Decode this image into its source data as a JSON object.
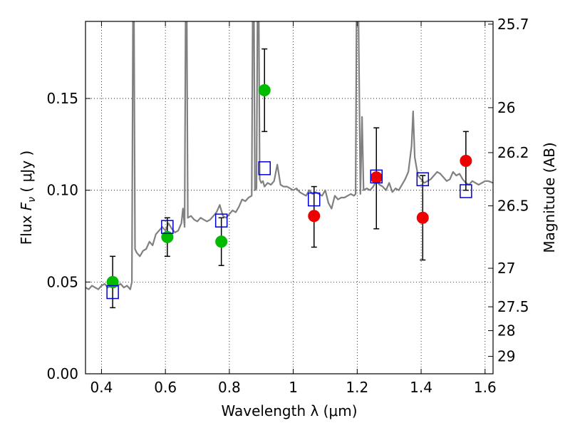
{
  "chart_data": {
    "type": "scatter",
    "xlabel": "Wavelength  λ (μm)",
    "ylabel": "Flux  F_ν  ( μJy )",
    "ylabel_right": "Magnitude (AB)",
    "xlim": [
      0.35,
      1.625
    ],
    "ylim": [
      0.0,
      0.192
    ],
    "grid": true,
    "x_ticks": [
      0.4,
      0.6,
      0.8,
      1.0,
      1.2,
      1.4,
      1.6
    ],
    "x_tick_labels": [
      "0.4",
      "0.6",
      "0.8",
      "1",
      "1.2",
      "1.4",
      "1.6"
    ],
    "y_ticks": [
      0.0,
      0.05,
      0.1,
      0.15
    ],
    "y_tick_labels": [
      "0.00",
      "0.05",
      "0.10",
      "0.15"
    ],
    "right_ticks": [
      {
        "label": "25.7",
        "flux": 0.1905
      },
      {
        "label": "26",
        "flux": 0.145
      },
      {
        "label": "26.2",
        "flux": 0.1205
      },
      {
        "label": "26.5",
        "flux": 0.0915
      },
      {
        "label": "27",
        "flux": 0.0575
      },
      {
        "label": "27.5",
        "flux": 0.0365
      },
      {
        "label": "28",
        "flux": 0.0235
      },
      {
        "label": "29",
        "flux": 0.0095
      }
    ],
    "series": [
      {
        "marker": "circle",
        "color": "#00bb00",
        "points": [
          {
            "x": 0.435,
            "y": 0.05,
            "lo": 0.036,
            "hi": 0.064
          },
          {
            "x": 0.606,
            "y": 0.0745,
            "lo": 0.064,
            "hi": 0.085
          },
          {
            "x": 0.775,
            "y": 0.072,
            "lo": 0.059,
            "hi": 0.085
          },
          {
            "x": 0.91,
            "y": 0.1545,
            "lo": 0.132,
            "hi": 0.177
          }
        ]
      },
      {
        "marker": "circle",
        "color": "#ee0000",
        "points": [
          {
            "x": 1.065,
            "y": 0.086,
            "lo": 0.069,
            "hi": 0.102
          },
          {
            "x": 1.26,
            "y": 0.107,
            "lo": 0.079,
            "hi": 0.134
          },
          {
            "x": 1.405,
            "y": 0.085,
            "lo": 0.062,
            "hi": 0.108
          },
          {
            "x": 1.54,
            "y": 0.116,
            "lo": 0.1,
            "hi": 0.132
          }
        ]
      },
      {
        "marker": "open-square",
        "color": "#0000cc",
        "points": [
          {
            "x": 0.435,
            "y": 0.0445
          },
          {
            "x": 0.606,
            "y": 0.08
          },
          {
            "x": 0.775,
            "y": 0.0835
          },
          {
            "x": 0.91,
            "y": 0.112
          },
          {
            "x": 1.065,
            "y": 0.095
          },
          {
            "x": 1.26,
            "y": 0.1075
          },
          {
            "x": 1.405,
            "y": 0.106
          },
          {
            "x": 1.54,
            "y": 0.0995
          }
        ]
      }
    ],
    "spectrum": {
      "color": "#808080",
      "x": [
        0.35,
        0.36,
        0.37,
        0.38,
        0.39,
        0.4,
        0.41,
        0.42,
        0.43,
        0.44,
        0.45,
        0.46,
        0.47,
        0.48,
        0.49,
        0.495,
        0.5,
        0.505,
        0.51,
        0.52,
        0.53,
        0.54,
        0.55,
        0.56,
        0.57,
        0.58,
        0.59,
        0.6,
        0.61,
        0.62,
        0.63,
        0.64,
        0.65,
        0.655,
        0.66,
        0.665,
        0.67,
        0.68,
        0.69,
        0.7,
        0.71,
        0.72,
        0.73,
        0.74,
        0.75,
        0.76,
        0.77,
        0.78,
        0.79,
        0.8,
        0.81,
        0.82,
        0.83,
        0.84,
        0.85,
        0.86,
        0.87,
        0.875,
        0.88,
        0.885,
        0.89,
        0.895,
        0.9,
        0.905,
        0.91,
        0.92,
        0.93,
        0.94,
        0.95,
        0.96,
        0.97,
        0.98,
        0.99,
        1.0,
        1.01,
        1.02,
        1.03,
        1.04,
        1.05,
        1.06,
        1.07,
        1.08,
        1.09,
        1.1,
        1.11,
        1.12,
        1.13,
        1.14,
        1.15,
        1.16,
        1.17,
        1.18,
        1.19,
        1.195,
        1.2,
        1.21,
        1.215,
        1.22,
        1.23,
        1.24,
        1.25,
        1.26,
        1.27,
        1.28,
        1.29,
        1.3,
        1.31,
        1.32,
        1.33,
        1.34,
        1.35,
        1.36,
        1.37,
        1.375,
        1.38,
        1.39,
        1.4,
        1.41,
        1.42,
        1.43,
        1.44,
        1.45,
        1.46,
        1.47,
        1.48,
        1.49,
        1.5,
        1.51,
        1.52,
        1.53,
        1.54,
        1.55,
        1.56,
        1.57,
        1.58,
        1.59,
        1.6,
        1.61,
        1.625
      ],
      "y": [
        0.047,
        0.046,
        0.048,
        0.047,
        0.046,
        0.048,
        0.049,
        0.047,
        0.048,
        0.047,
        0.048,
        0.049,
        0.047,
        0.048,
        0.046,
        0.05,
        0.26,
        0.068,
        0.066,
        0.064,
        0.067,
        0.068,
        0.072,
        0.07,
        0.076,
        0.078,
        0.08,
        0.078,
        0.082,
        0.079,
        0.077,
        0.078,
        0.082,
        0.09,
        0.08,
        0.26,
        0.085,
        0.086,
        0.084,
        0.083,
        0.085,
        0.084,
        0.083,
        0.084,
        0.086,
        0.088,
        0.092,
        0.086,
        0.085,
        0.087,
        0.089,
        0.088,
        0.091,
        0.095,
        0.094,
        0.096,
        0.097,
        0.26,
        0.1,
        0.101,
        0.26,
        0.106,
        0.104,
        0.105,
        0.102,
        0.104,
        0.103,
        0.105,
        0.114,
        0.103,
        0.102,
        0.102,
        0.101,
        0.1,
        0.101,
        0.099,
        0.098,
        0.097,
        0.1,
        0.098,
        0.099,
        0.098,
        0.097,
        0.1,
        0.093,
        0.09,
        0.097,
        0.095,
        0.096,
        0.096,
        0.097,
        0.098,
        0.097,
        0.098,
        0.26,
        0.098,
        0.14,
        0.1,
        0.101,
        0.1,
        0.102,
        0.105,
        0.103,
        0.102,
        0.1,
        0.104,
        0.099,
        0.101,
        0.1,
        0.103,
        0.106,
        0.11,
        0.124,
        0.143,
        0.118,
        0.108,
        0.106,
        0.104,
        0.105,
        0.106,
        0.108,
        0.11,
        0.109,
        0.107,
        0.105,
        0.106,
        0.11,
        0.108,
        0.109,
        0.106,
        0.104,
        0.103,
        0.105,
        0.104,
        0.103,
        0.104,
        0.105,
        0.105,
        0.104
      ]
    }
  }
}
